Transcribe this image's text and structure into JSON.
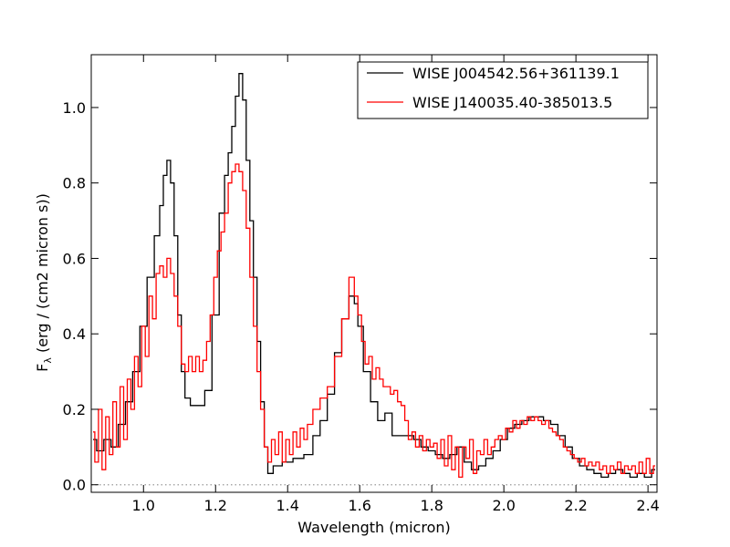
{
  "chart_data": {
    "type": "line",
    "step": true,
    "xlabel": "Wavelength (micron)",
    "ylabel_main": "F",
    "ylabel_sub": "λ",
    "ylabel_rest": " (erg / (cm2 micron s))",
    "xlim": [
      0.855,
      2.425
    ],
    "ylim": [
      -0.02,
      1.14
    ],
    "xticks": [
      1.0,
      1.2,
      1.4,
      1.6,
      1.8,
      2.0,
      2.2,
      2.4
    ],
    "xtick_labels": [
      "1.0",
      "1.2",
      "1.4",
      "1.6",
      "1.8",
      "2.0",
      "2.2",
      "2.4"
    ],
    "yticks": [
      0.0,
      0.2,
      0.4,
      0.6,
      0.8,
      1.0
    ],
    "ytick_labels": [
      "0.0",
      "0.2",
      "0.4",
      "0.6",
      "0.8",
      "1.0"
    ],
    "zero_line": true,
    "legend_position": "top-right",
    "series": [
      {
        "name": "WISE J004542.56+361139.1",
        "color": "#000000",
        "points": [
          [
            0.86,
            0.12
          ],
          [
            0.88,
            0.09
          ],
          [
            0.9,
            0.12
          ],
          [
            0.92,
            0.1
          ],
          [
            0.94,
            0.16
          ],
          [
            0.96,
            0.22
          ],
          [
            0.98,
            0.3
          ],
          [
            1.0,
            0.42
          ],
          [
            1.02,
            0.55
          ],
          [
            1.04,
            0.66
          ],
          [
            1.05,
            0.74
          ],
          [
            1.06,
            0.82
          ],
          [
            1.07,
            0.86
          ],
          [
            1.08,
            0.8
          ],
          [
            1.09,
            0.66
          ],
          [
            1.1,
            0.45
          ],
          [
            1.11,
            0.3
          ],
          [
            1.12,
            0.23
          ],
          [
            1.14,
            0.21
          ],
          [
            1.16,
            0.21
          ],
          [
            1.18,
            0.25
          ],
          [
            1.2,
            0.45
          ],
          [
            1.22,
            0.72
          ],
          [
            1.23,
            0.82
          ],
          [
            1.24,
            0.88
          ],
          [
            1.25,
            0.95
          ],
          [
            1.26,
            1.03
          ],
          [
            1.27,
            1.09
          ],
          [
            1.28,
            1.02
          ],
          [
            1.29,
            0.86
          ],
          [
            1.3,
            0.7
          ],
          [
            1.31,
            0.55
          ],
          [
            1.32,
            0.38
          ],
          [
            1.33,
            0.22
          ],
          [
            1.34,
            0.1
          ],
          [
            1.35,
            0.03
          ],
          [
            1.37,
            0.05
          ],
          [
            1.4,
            0.06
          ],
          [
            1.43,
            0.07
          ],
          [
            1.46,
            0.08
          ],
          [
            1.48,
            0.13
          ],
          [
            1.5,
            0.17
          ],
          [
            1.52,
            0.24
          ],
          [
            1.54,
            0.35
          ],
          [
            1.56,
            0.44
          ],
          [
            1.58,
            0.5
          ],
          [
            1.59,
            0.48
          ],
          [
            1.6,
            0.42
          ],
          [
            1.62,
            0.3
          ],
          [
            1.64,
            0.22
          ],
          [
            1.66,
            0.17
          ],
          [
            1.68,
            0.19
          ],
          [
            1.7,
            0.13
          ],
          [
            1.72,
            0.13
          ],
          [
            1.74,
            0.13
          ],
          [
            1.76,
            0.12
          ],
          [
            1.78,
            0.1
          ],
          [
            1.8,
            0.09
          ],
          [
            1.82,
            0.08
          ],
          [
            1.84,
            0.07
          ],
          [
            1.86,
            0.08
          ],
          [
            1.88,
            0.1
          ],
          [
            1.9,
            0.06
          ],
          [
            1.92,
            0.04
          ],
          [
            1.94,
            0.05
          ],
          [
            1.96,
            0.07
          ],
          [
            1.98,
            0.09
          ],
          [
            2.0,
            0.12
          ],
          [
            2.02,
            0.15
          ],
          [
            2.04,
            0.16
          ],
          [
            2.06,
            0.17
          ],
          [
            2.08,
            0.18
          ],
          [
            2.1,
            0.18
          ],
          [
            2.12,
            0.17
          ],
          [
            2.14,
            0.16
          ],
          [
            2.16,
            0.13
          ],
          [
            2.18,
            0.1
          ],
          [
            2.2,
            0.07
          ],
          [
            2.22,
            0.05
          ],
          [
            2.24,
            0.04
          ],
          [
            2.26,
            0.03
          ],
          [
            2.28,
            0.02
          ],
          [
            2.3,
            0.03
          ],
          [
            2.32,
            0.04
          ],
          [
            2.34,
            0.03
          ],
          [
            2.36,
            0.02
          ],
          [
            2.38,
            0.03
          ],
          [
            2.4,
            0.02
          ],
          [
            2.42,
            0.04
          ]
        ]
      },
      {
        "name": "WISE J140035.40-385013.5",
        "color": "#ff0000",
        "points": [
          [
            0.86,
            0.14
          ],
          [
            0.87,
            0.06
          ],
          [
            0.88,
            0.2
          ],
          [
            0.89,
            0.04
          ],
          [
            0.9,
            0.18
          ],
          [
            0.91,
            0.08
          ],
          [
            0.92,
            0.22
          ],
          [
            0.93,
            0.1
          ],
          [
            0.94,
            0.26
          ],
          [
            0.95,
            0.12
          ],
          [
            0.96,
            0.28
          ],
          [
            0.97,
            0.2
          ],
          [
            0.98,
            0.34
          ],
          [
            0.99,
            0.26
          ],
          [
            1.0,
            0.42
          ],
          [
            1.01,
            0.34
          ],
          [
            1.02,
            0.5
          ],
          [
            1.03,
            0.44
          ],
          [
            1.04,
            0.56
          ],
          [
            1.05,
            0.58
          ],
          [
            1.06,
            0.55
          ],
          [
            1.07,
            0.6
          ],
          [
            1.08,
            0.56
          ],
          [
            1.09,
            0.5
          ],
          [
            1.1,
            0.42
          ],
          [
            1.11,
            0.32
          ],
          [
            1.12,
            0.3
          ],
          [
            1.13,
            0.34
          ],
          [
            1.14,
            0.3
          ],
          [
            1.15,
            0.34
          ],
          [
            1.16,
            0.3
          ],
          [
            1.17,
            0.33
          ],
          [
            1.18,
            0.38
          ],
          [
            1.19,
            0.45
          ],
          [
            1.2,
            0.55
          ],
          [
            1.21,
            0.62
          ],
          [
            1.22,
            0.67
          ],
          [
            1.23,
            0.72
          ],
          [
            1.24,
            0.8
          ],
          [
            1.25,
            0.83
          ],
          [
            1.26,
            0.85
          ],
          [
            1.27,
            0.83
          ],
          [
            1.28,
            0.78
          ],
          [
            1.29,
            0.68
          ],
          [
            1.3,
            0.55
          ],
          [
            1.31,
            0.42
          ],
          [
            1.32,
            0.3
          ],
          [
            1.33,
            0.2
          ],
          [
            1.34,
            0.1
          ],
          [
            1.35,
            0.06
          ],
          [
            1.36,
            0.12
          ],
          [
            1.37,
            0.08
          ],
          [
            1.38,
            0.14
          ],
          [
            1.39,
            0.06
          ],
          [
            1.4,
            0.12
          ],
          [
            1.41,
            0.08
          ],
          [
            1.42,
            0.14
          ],
          [
            1.43,
            0.1
          ],
          [
            1.44,
            0.15
          ],
          [
            1.45,
            0.12
          ],
          [
            1.46,
            0.16
          ],
          [
            1.48,
            0.2
          ],
          [
            1.5,
            0.23
          ],
          [
            1.52,
            0.26
          ],
          [
            1.54,
            0.34
          ],
          [
            1.56,
            0.44
          ],
          [
            1.58,
            0.55
          ],
          [
            1.59,
            0.5
          ],
          [
            1.6,
            0.45
          ],
          [
            1.61,
            0.38
          ],
          [
            1.62,
            0.32
          ],
          [
            1.63,
            0.34
          ],
          [
            1.64,
            0.28
          ],
          [
            1.65,
            0.31
          ],
          [
            1.66,
            0.28
          ],
          [
            1.67,
            0.26
          ],
          [
            1.68,
            0.26
          ],
          [
            1.69,
            0.24
          ],
          [
            1.7,
            0.25
          ],
          [
            1.71,
            0.22
          ],
          [
            1.72,
            0.21
          ],
          [
            1.73,
            0.17
          ],
          [
            1.74,
            0.12
          ],
          [
            1.75,
            0.14
          ],
          [
            1.76,
            0.1
          ],
          [
            1.77,
            0.13
          ],
          [
            1.78,
            0.09
          ],
          [
            1.79,
            0.12
          ],
          [
            1.8,
            0.1
          ],
          [
            1.81,
            0.11
          ],
          [
            1.82,
            0.07
          ],
          [
            1.83,
            0.12
          ],
          [
            1.84,
            0.05
          ],
          [
            1.85,
            0.13
          ],
          [
            1.86,
            0.04
          ],
          [
            1.87,
            0.1
          ],
          [
            1.88,
            0.02
          ],
          [
            1.89,
            0.1
          ],
          [
            1.9,
            0.07
          ],
          [
            1.91,
            0.12
          ],
          [
            1.92,
            0.03
          ],
          [
            1.93,
            0.09
          ],
          [
            1.94,
            0.08
          ],
          [
            1.95,
            0.12
          ],
          [
            1.96,
            0.08
          ],
          [
            1.97,
            0.1
          ],
          [
            1.98,
            0.12
          ],
          [
            1.99,
            0.13
          ],
          [
            2.0,
            0.12
          ],
          [
            2.01,
            0.15
          ],
          [
            2.02,
            0.14
          ],
          [
            2.03,
            0.17
          ],
          [
            2.04,
            0.15
          ],
          [
            2.05,
            0.17
          ],
          [
            2.06,
            0.16
          ],
          [
            2.07,
            0.18
          ],
          [
            2.08,
            0.17
          ],
          [
            2.09,
            0.18
          ],
          [
            2.1,
            0.17
          ],
          [
            2.11,
            0.16
          ],
          [
            2.12,
            0.17
          ],
          [
            2.13,
            0.15
          ],
          [
            2.14,
            0.14
          ],
          [
            2.15,
            0.13
          ],
          [
            2.16,
            0.12
          ],
          [
            2.17,
            0.1
          ],
          [
            2.18,
            0.09
          ],
          [
            2.19,
            0.08
          ],
          [
            2.2,
            0.07
          ],
          [
            2.21,
            0.06
          ],
          [
            2.22,
            0.07
          ],
          [
            2.23,
            0.05
          ],
          [
            2.24,
            0.06
          ],
          [
            2.25,
            0.05
          ],
          [
            2.26,
            0.06
          ],
          [
            2.27,
            0.04
          ],
          [
            2.28,
            0.05
          ],
          [
            2.29,
            0.03
          ],
          [
            2.3,
            0.05
          ],
          [
            2.31,
            0.04
          ],
          [
            2.32,
            0.06
          ],
          [
            2.33,
            0.03
          ],
          [
            2.34,
            0.05
          ],
          [
            2.35,
            0.04
          ],
          [
            2.36,
            0.05
          ],
          [
            2.37,
            0.03
          ],
          [
            2.38,
            0.06
          ],
          [
            2.39,
            0.03
          ],
          [
            2.4,
            0.07
          ],
          [
            2.41,
            0.03
          ],
          [
            2.42,
            0.05
          ]
        ]
      }
    ]
  }
}
